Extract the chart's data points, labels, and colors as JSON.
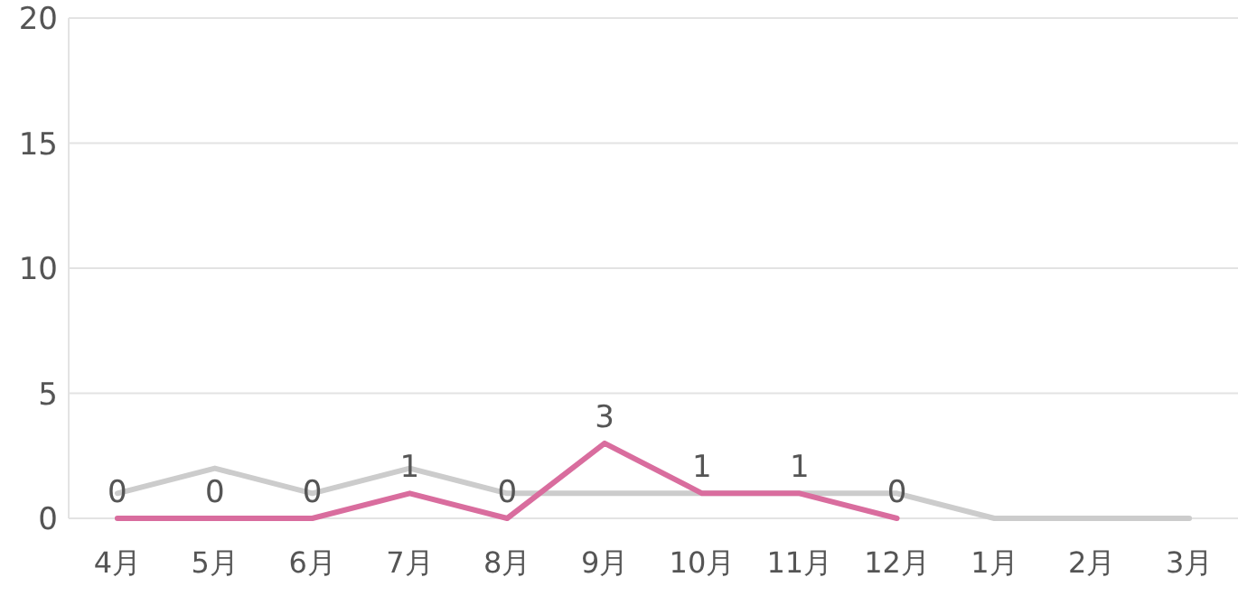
{
  "chart_data": {
    "type": "line",
    "categories": [
      "4月",
      "5月",
      "6月",
      "7月",
      "8月",
      "9月",
      "10月",
      "11月",
      "12月",
      "1月",
      "2月",
      "3月"
    ],
    "series": [
      {
        "color": "#cccccc",
        "values": [
          1,
          2,
          1,
          2,
          1,
          1,
          1,
          1,
          1,
          0,
          0,
          0
        ]
      },
      {
        "color": "#d96d9e",
        "values": [
          0,
          0,
          0,
          1,
          0,
          3,
          1,
          1,
          0,
          null,
          null,
          null
        ],
        "value_labels": [
          "0",
          "0",
          "0",
          "1",
          "0",
          "3",
          "1",
          "1",
          "0",
          null,
          null,
          null
        ]
      }
    ],
    "ylim": [
      0,
      20
    ],
    "yticks": [
      0,
      5,
      10,
      15,
      20
    ],
    "grid": "y",
    "marker": "none",
    "line_style": "solid"
  }
}
